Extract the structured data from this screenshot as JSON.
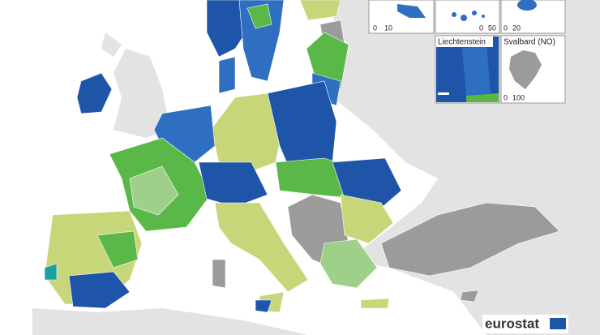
{
  "insets": [
    {
      "scale": [
        0,
        10
      ]
    },
    {
      "scale": [
        0,
        50
      ]
    },
    {
      "scale": [
        0,
        20
      ]
    },
    {
      "label": "Liechtenstein"
    },
    {
      "label": "Svalbard (NO)",
      "scale": [
        0,
        100
      ]
    }
  ],
  "logo": "eurostat"
}
